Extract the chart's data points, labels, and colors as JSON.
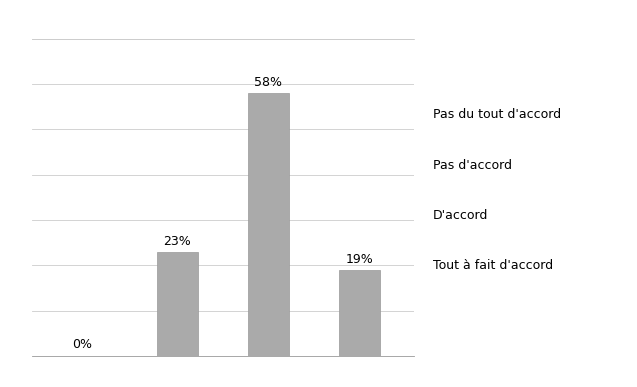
{
  "categories": [
    "Pas du tout d'accord",
    "Pas d'accord",
    "D'accord",
    "Tout à fait d'accord"
  ],
  "values": [
    0,
    23,
    58,
    19
  ],
  "labels": [
    "0%",
    "23%",
    "58%",
    "19%"
  ],
  "bar_color": "#aaaaaa",
  "bar_edge_color": "#999999",
  "background_color": "#ffffff",
  "ylim": [
    0,
    70
  ],
  "yticks": [
    0,
    10,
    20,
    30,
    40,
    50,
    60,
    70
  ],
  "legend_labels": [
    "Pas du tout d'accord",
    "Pas d'accord",
    "D'accord",
    "Tout à fait d'accord"
  ],
  "legend_fontsize": 9,
  "label_fontsize": 9,
  "bar_width": 0.45
}
